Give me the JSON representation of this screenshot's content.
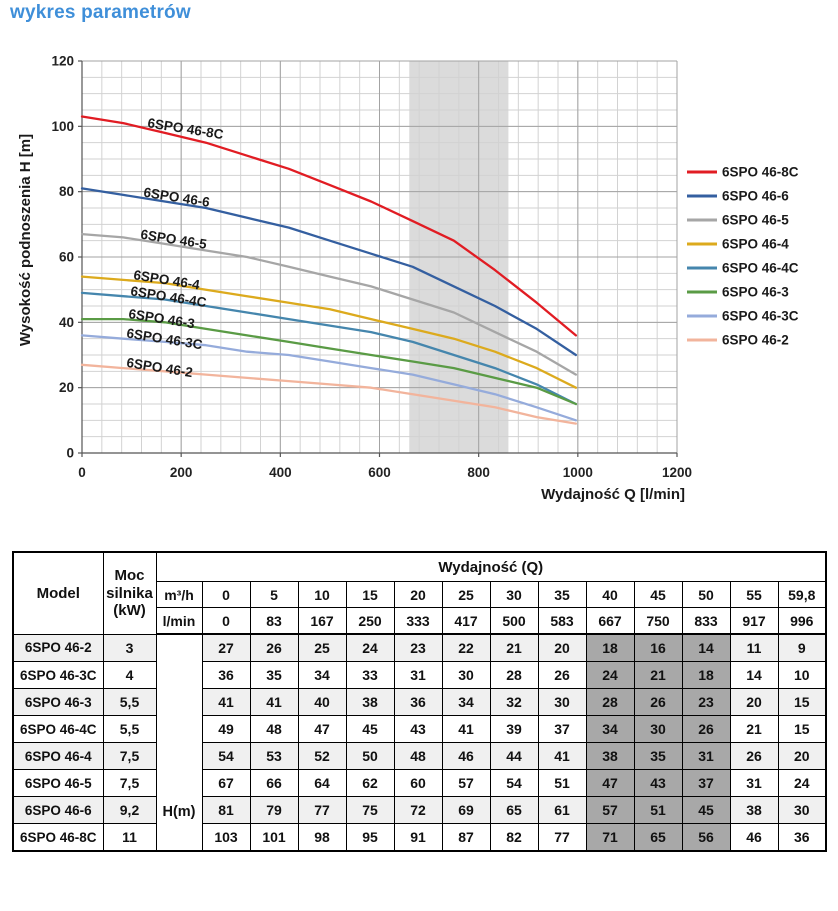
{
  "title": "wykres parametrów",
  "accent_color": "#3f8fd9",
  "chart_data": {
    "type": "line",
    "xlabel": "Wydajność Q [l/min]",
    "ylabel": "Wysokość podnoszenia H [m]",
    "xlim": [
      0,
      1200
    ],
    "ylim": [
      0,
      120
    ],
    "x_ticks": [
      0,
      200,
      400,
      600,
      800,
      1000,
      1200
    ],
    "y_ticks": [
      0,
      20,
      40,
      60,
      80,
      100,
      120
    ],
    "x_minor_step": 40,
    "y_minor_step": 5,
    "grid": true,
    "legend_position": "right",
    "band": {
      "from": 660,
      "to": 860,
      "color": "#dbdbdb"
    },
    "x": [
      0,
      83,
      167,
      250,
      333,
      417,
      500,
      583,
      667,
      750,
      833,
      917,
      996
    ],
    "series": [
      {
        "name": "6SPO 46-8C",
        "color": "#e11c23",
        "values": [
          103,
          101,
          98,
          95,
          91,
          87,
          82,
          77,
          71,
          65,
          56,
          46,
          36
        ]
      },
      {
        "name": "6SPO 46-6",
        "color": "#345fa0",
        "values": [
          81,
          79,
          77,
          75,
          72,
          69,
          65,
          61,
          57,
          51,
          45,
          38,
          30
        ]
      },
      {
        "name": "6SPO 46-5",
        "color": "#a6a6a6",
        "values": [
          67,
          66,
          64,
          62,
          60,
          57,
          54,
          51,
          47,
          43,
          37,
          31,
          24
        ]
      },
      {
        "name": "6SPO 46-4",
        "color": "#dcaa1d",
        "values": [
          54,
          53,
          52,
          50,
          48,
          46,
          44,
          41,
          38,
          35,
          31,
          26,
          20
        ]
      },
      {
        "name": "6SPO 46-4C",
        "color": "#4586ad",
        "values": [
          49,
          48,
          47,
          45,
          43,
          41,
          39,
          37,
          34,
          30,
          26,
          21,
          15
        ]
      },
      {
        "name": "6SPO 46-3",
        "color": "#5a9b45",
        "values": [
          41,
          41,
          40,
          38,
          36,
          34,
          32,
          30,
          28,
          26,
          23,
          20,
          15
        ]
      },
      {
        "name": "6SPO 46-3C",
        "color": "#95abdb",
        "values": [
          36,
          35,
          34,
          33,
          31,
          30,
          28,
          26,
          24,
          21,
          18,
          14,
          10
        ]
      },
      {
        "name": "6SPO 46-2",
        "color": "#f2b49c",
        "values": [
          27,
          26,
          25,
          24,
          23,
          22,
          21,
          20,
          18,
          16,
          14,
          11,
          9
        ]
      }
    ]
  },
  "table": {
    "header": {
      "model": "Model",
      "power": "Moc silnika (kW)",
      "flow_group": "Wydajność (Q)",
      "unit_m3h": "m³/h",
      "unit_lmin": "l/min",
      "m3h_values": [
        "0",
        "5",
        "10",
        "15",
        "20",
        "25",
        "30",
        "35",
        "40",
        "45",
        "50",
        "55",
        "59,8"
      ],
      "lmin_values": [
        "0",
        "83",
        "167",
        "250",
        "333",
        "417",
        "500",
        "583",
        "667",
        "750",
        "833",
        "917",
        "996"
      ]
    },
    "h_label": "H(m)",
    "highlight_columns": [
      8,
      9,
      10
    ],
    "rows": [
      {
        "model": "6SPO 46-2",
        "power": "3",
        "values": [
          "27",
          "26",
          "25",
          "24",
          "23",
          "22",
          "21",
          "20",
          "18",
          "16",
          "14",
          "11",
          "9"
        ]
      },
      {
        "model": "6SPO 46-3C",
        "power": "4",
        "values": [
          "36",
          "35",
          "34",
          "33",
          "31",
          "30",
          "28",
          "26",
          "24",
          "21",
          "18",
          "14",
          "10"
        ]
      },
      {
        "model": "6SPO 46-3",
        "power": "5,5",
        "values": [
          "41",
          "41",
          "40",
          "38",
          "36",
          "34",
          "32",
          "30",
          "28",
          "26",
          "23",
          "20",
          "15"
        ]
      },
      {
        "model": "6SPO 46-4C",
        "power": "5,5",
        "values": [
          "49",
          "48",
          "47",
          "45",
          "43",
          "41",
          "39",
          "37",
          "34",
          "30",
          "26",
          "21",
          "15"
        ]
      },
      {
        "model": "6SPO 46-4",
        "power": "7,5",
        "values": [
          "54",
          "53",
          "52",
          "50",
          "48",
          "46",
          "44",
          "41",
          "38",
          "35",
          "31",
          "26",
          "20"
        ]
      },
      {
        "model": "6SPO 46-5",
        "power": "7,5",
        "values": [
          "67",
          "66",
          "64",
          "62",
          "60",
          "57",
          "54",
          "51",
          "47",
          "43",
          "37",
          "31",
          "24"
        ]
      },
      {
        "model": "6SPO 46-6",
        "power": "9,2",
        "values": [
          "81",
          "79",
          "77",
          "75",
          "72",
          "69",
          "65",
          "61",
          "57",
          "51",
          "45",
          "38",
          "30"
        ]
      },
      {
        "model": "6SPO 46-8C",
        "power": "11",
        "values": [
          "103",
          "101",
          "98",
          "95",
          "91",
          "87",
          "82",
          "77",
          "71",
          "65",
          "56",
          "46",
          "36"
        ]
      }
    ]
  }
}
